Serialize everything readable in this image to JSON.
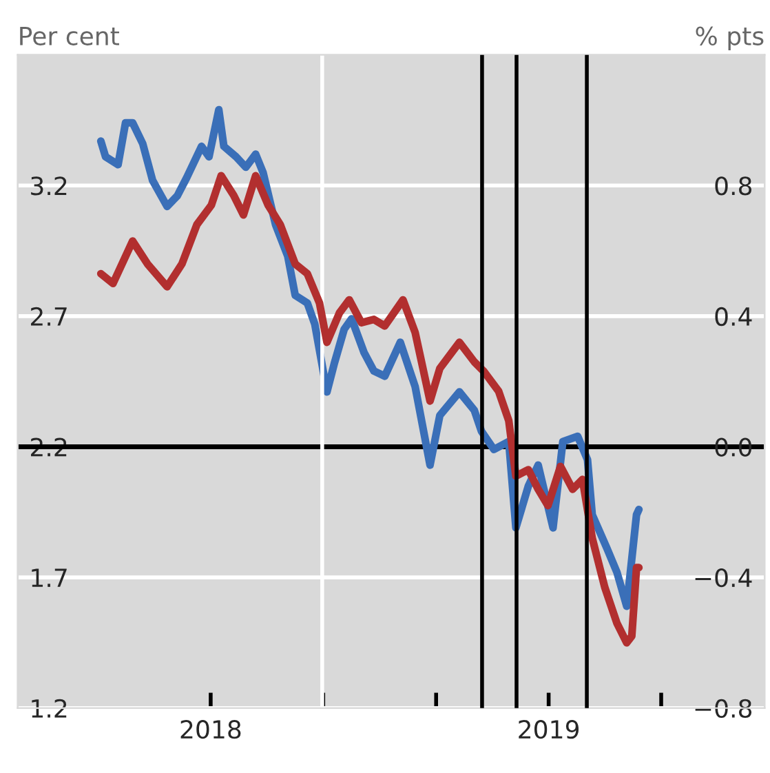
{
  "chart_data": {
    "type": "line",
    "ylabel": "Per cent",
    "y2label": "% pts",
    "xlim": [
      2017.429,
      2019.639
    ],
    "xticks": [
      2018,
      {
        "value": 2018.333,
        "label": null
      },
      {
        "value": 2018.667,
        "label": null
      },
      2019,
      {
        "value": 2019.333,
        "label": null
      }
    ],
    "ylim": [
      1.2,
      3.7
    ],
    "yticks": [
      1.2,
      1.7,
      2.2,
      2.7,
      3.2
    ],
    "y2lim": [
      -0.8,
      1.2
    ],
    "y2ticks": [
      {
        "value": -0.8,
        "label": "−0.8"
      },
      {
        "value": -0.4,
        "label": "−0.4"
      },
      {
        "value": 0,
        "label": "0.0"
      },
      0.4,
      0.8
    ],
    "grid": "y",
    "legend": false,
    "marker": "none",
    "line_style": "solid",
    "ref_lines": [
      {
        "axis": "y",
        "value": 2.2,
        "color": "#000000"
      },
      {
        "axis": "x",
        "value": 2018.33,
        "color": "#ffffff"
      },
      {
        "axis": "x",
        "value": 2018.803,
        "color": "#000000"
      },
      {
        "axis": "x",
        "value": 2018.905,
        "color": "#000000"
      },
      {
        "axis": "x",
        "value": 2019.113,
        "color": "#000000"
      }
    ],
    "series": [
      {
        "color": "#3a6fb8",
        "x": [
          2017.675,
          2017.689,
          2017.726,
          2017.748,
          2017.769,
          2017.799,
          2017.828,
          2017.871,
          2017.901,
          2017.929,
          2017.973,
          2017.995,
          2018.024,
          2018.039,
          2018.075,
          2018.104,
          2018.133,
          2018.155,
          2018.192,
          2018.228,
          2018.25,
          2018.286,
          2018.308,
          2018.344,
          2018.366,
          2018.395,
          2018.417,
          2018.454,
          2018.483,
          2018.515,
          2018.561,
          2018.605,
          2018.649,
          2018.678,
          2018.736,
          2018.78,
          2018.801,
          2018.838,
          2018.882,
          2018.903,
          2018.94,
          2018.969,
          2019.013,
          2019.042,
          2019.086,
          2019.115,
          2019.129,
          2019.173,
          2019.202,
          2019.231,
          2019.26,
          2019.267
        ],
        "values": [
          3.37,
          3.31,
          3.28,
          3.44,
          3.44,
          3.36,
          3.22,
          3.12,
          3.16,
          3.23,
          3.35,
          3.31,
          3.49,
          3.35,
          3.31,
          3.27,
          3.32,
          3.25,
          3.05,
          2.93,
          2.78,
          2.75,
          2.67,
          2.41,
          2.52,
          2.65,
          2.69,
          2.56,
          2.49,
          2.47,
          2.6,
          2.43,
          2.13,
          2.32,
          2.41,
          2.34,
          2.26,
          2.19,
          2.22,
          1.89,
          2.05,
          2.13,
          1.89,
          2.22,
          2.24,
          2.15,
          1.94,
          1.81,
          1.72,
          1.59,
          1.94,
          1.96
        ]
      },
      {
        "color": "#b22f2f",
        "axis": "y2",
        "x": [
          2017.675,
          2017.711,
          2017.769,
          2017.813,
          2017.871,
          2017.915,
          2017.959,
          2018.002,
          2018.031,
          2018.068,
          2018.097,
          2018.133,
          2018.17,
          2018.206,
          2018.25,
          2018.286,
          2018.322,
          2018.344,
          2018.381,
          2018.41,
          2018.446,
          2018.483,
          2018.515,
          2018.569,
          2018.605,
          2018.649,
          2018.678,
          2018.736,
          2018.78,
          2018.809,
          2018.852,
          2018.882,
          2018.903,
          2018.94,
          2018.969,
          2018.998,
          2019.035,
          2019.071,
          2019.1,
          2019.129,
          2019.166,
          2019.202,
          2019.231,
          2019.246,
          2019.26,
          2019.267
        ],
        "values": [
          0.53,
          0.5,
          0.63,
          0.56,
          0.49,
          0.56,
          0.68,
          0.74,
          0.83,
          0.77,
          0.71,
          0.83,
          0.74,
          0.68,
          0.56,
          0.53,
          0.44,
          0.32,
          0.41,
          0.45,
          0.38,
          0.39,
          0.37,
          0.45,
          0.35,
          0.14,
          0.24,
          0.32,
          0.26,
          0.23,
          0.17,
          0.08,
          -0.09,
          -0.07,
          -0.13,
          -0.18,
          -0.06,
          -0.13,
          -0.1,
          -0.28,
          -0.43,
          -0.54,
          -0.6,
          -0.58,
          -0.37,
          -0.37
        ]
      }
    ]
  }
}
